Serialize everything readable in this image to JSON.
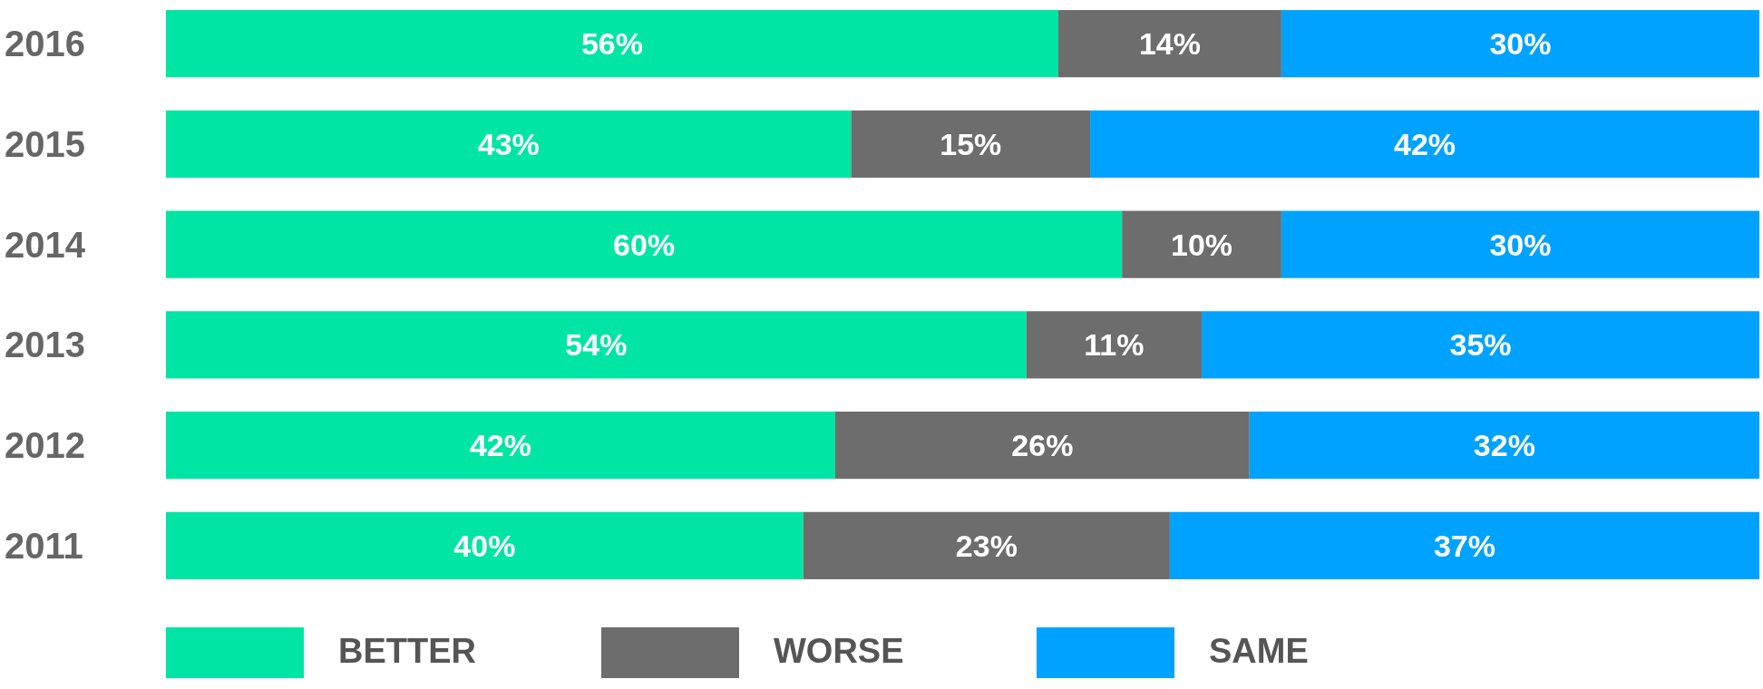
{
  "chart_data": {
    "type": "bar",
    "orientation": "horizontal",
    "stacked": true,
    "categories": [
      "2016",
      "2015",
      "2014",
      "2013",
      "2012",
      "2011"
    ],
    "tick_labels": "y",
    "legend": "bottom",
    "series": [
      {
        "name": "BETTER",
        "color": "#00e5a4",
        "values": [
          56,
          43,
          60,
          54,
          42,
          40
        ],
        "value_labels": [
          "56%",
          "43%",
          "60%",
          "54%",
          "42%",
          "40%"
        ]
      },
      {
        "name": "WORSE",
        "color": "#6d6d6d",
        "values": [
          14,
          15,
          10,
          11,
          26,
          23
        ],
        "value_labels": [
          "14%",
          "15%",
          "10%",
          "11%",
          "26%",
          "23%"
        ]
      },
      {
        "name": "SAME",
        "color": "#00a2ff",
        "values": [
          30,
          42,
          30,
          35,
          32,
          37
        ],
        "value_labels": [
          "30%",
          "42%",
          "30%",
          "35%",
          "32%",
          "37%"
        ]
      }
    ]
  }
}
